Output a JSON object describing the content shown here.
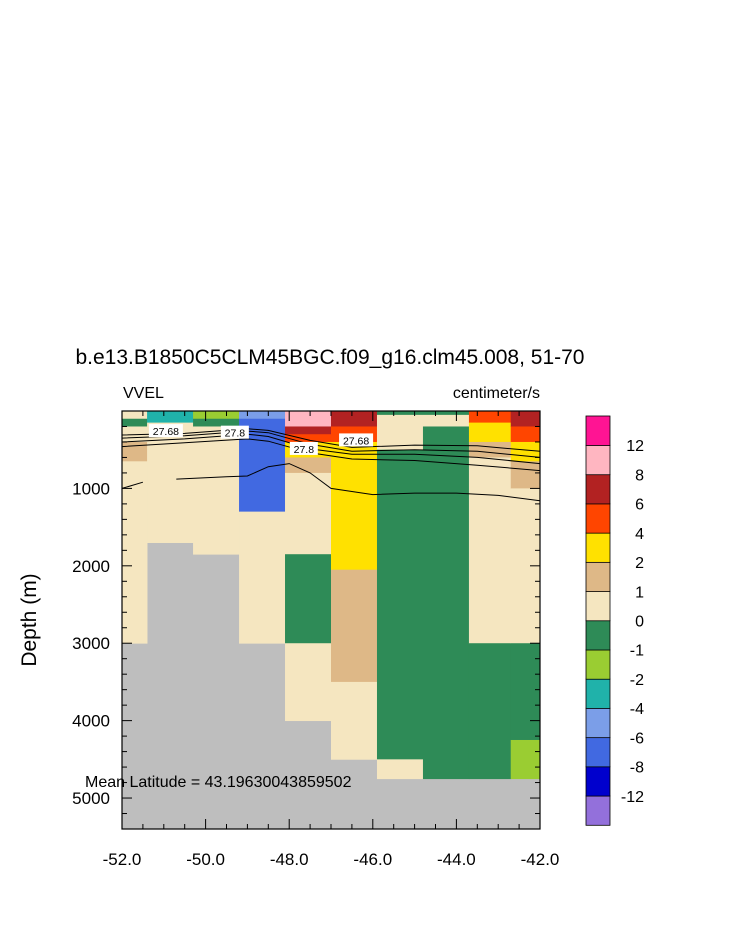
{
  "chart_data": {
    "type": "heatmap",
    "title": "b.e13.B1850C5CLM45BGC.f09_g16.clm45.008, 51-70",
    "left_label": "VVEL",
    "right_label": "centimeter/s",
    "xlabel": "",
    "ylabel": "Depth (m)",
    "annotation": "Mean Latitude = 43.19630043859502",
    "xlim": [
      -52.0,
      -42.0
    ],
    "ylim": [
      0,
      5400
    ],
    "y_reversed": true,
    "x_ticks": [
      -52,
      -50,
      -48,
      -46,
      -44,
      -42
    ],
    "x_tick_labels": [
      "-52.0",
      "-50.0",
      "-48.0",
      "-46.0",
      "-44.0",
      "-42.0"
    ],
    "y_ticks": [
      1000,
      2000,
      3000,
      4000,
      5000
    ],
    "y_tick_labels": [
      "1000",
      "2000",
      "3000",
      "4000",
      "5000"
    ],
    "missing_color": "#bebebe",
    "colorbar": {
      "colors": [
        "#9370db",
        "#0000cd",
        "#4169e1",
        "#7b9ee8",
        "#20b2aa",
        "#9acd32",
        "#2e8b57",
        "#f5e6c0",
        "#deb887",
        "#ffe100",
        "#ff4500",
        "#b22222",
        "#ffb6c1",
        "#ff1493"
      ],
      "labels": [
        "-12",
        "-8",
        "-6",
        "-4",
        "-2",
        "-1",
        "0",
        "1",
        "2",
        "4",
        "6",
        "8",
        "12"
      ]
    },
    "cells": [
      {
        "x": [
          -52.0,
          -51.4
        ],
        "y": [
          0,
          100
        ],
        "value": "0 to 1"
      },
      {
        "x": [
          -52.0,
          -51.4
        ],
        "y": [
          100,
          200
        ],
        "value": "-1 to 0"
      },
      {
        "x": [
          -52.0,
          -51.4
        ],
        "y": [
          200,
          400
        ],
        "value": "0 to 1"
      },
      {
        "x": [
          -52.0,
          -51.4
        ],
        "y": [
          400,
          650
        ],
        "value": "1 to 2"
      },
      {
        "x": [
          -52.0,
          -51.4
        ],
        "y": [
          650,
          3000
        ],
        "value": "0 to 1"
      },
      {
        "x": [
          -51.4,
          -50.3
        ],
        "y": [
          0,
          150
        ],
        "value": "-4 to -2"
      },
      {
        "x": [
          -51.4,
          -50.3
        ],
        "y": [
          150,
          300
        ],
        "value": "0 to 1"
      },
      {
        "x": [
          -51.4,
          -50.3
        ],
        "y": [
          300,
          1700
        ],
        "value": "0 to 1"
      },
      {
        "x": [
          -50.3,
          -49.2
        ],
        "y": [
          0,
          100
        ],
        "value": "-2 to -1"
      },
      {
        "x": [
          -50.3,
          -49.2
        ],
        "y": [
          100,
          200
        ],
        "value": "-1 to 0"
      },
      {
        "x": [
          -50.3,
          -49.2
        ],
        "y": [
          200,
          1850
        ],
        "value": "0 to 1"
      },
      {
        "x": [
          -49.2,
          -48.1
        ],
        "y": [
          0,
          100
        ],
        "value": "-6 to -4"
      },
      {
        "x": [
          -49.2,
          -48.1
        ],
        "y": [
          100,
          1300
        ],
        "value": "-8 to -6"
      },
      {
        "x": [
          -49.2,
          -48.1
        ],
        "y": [
          1300,
          3000
        ],
        "value": "0 to 1"
      },
      {
        "x": [
          -48.1,
          -47.0
        ],
        "y": [
          0,
          200
        ],
        "value": "8 to 12"
      },
      {
        "x": [
          -48.1,
          -47.0
        ],
        "y": [
          200,
          300
        ],
        "value": "6 to 8"
      },
      {
        "x": [
          -48.1,
          -47.0
        ],
        "y": [
          300,
          400
        ],
        "value": "4 to 6"
      },
      {
        "x": [
          -48.1,
          -47.0
        ],
        "y": [
          400,
          600
        ],
        "value": "2 to 4"
      },
      {
        "x": [
          -48.1,
          -47.0
        ],
        "y": [
          600,
          800
        ],
        "value": "1 to 2"
      },
      {
        "x": [
          -48.1,
          -47.0
        ],
        "y": [
          800,
          1850
        ],
        "value": "0 to 1"
      },
      {
        "x": [
          -48.1,
          -47.0
        ],
        "y": [
          1850,
          3000
        ],
        "value": "-1 to 0"
      },
      {
        "x": [
          -48.1,
          -47.0
        ],
        "y": [
          3000,
          4000
        ],
        "value": "0 to 1"
      },
      {
        "x": [
          -47.0,
          -45.9
        ],
        "y": [
          0,
          200
        ],
        "value": "6 to 8"
      },
      {
        "x": [
          -47.0,
          -45.9
        ],
        "y": [
          200,
          400
        ],
        "value": "4 to 6"
      },
      {
        "x": [
          -47.0,
          -45.9
        ],
        "y": [
          400,
          2050
        ],
        "value": "2 to 4"
      },
      {
        "x": [
          -47.0,
          -45.9
        ],
        "y": [
          2050,
          3500
        ],
        "value": "1 to 2"
      },
      {
        "x": [
          -47.0,
          -45.9
        ],
        "y": [
          3500,
          4500
        ],
        "value": "0 to 1"
      },
      {
        "x": [
          -45.9,
          -44.8
        ],
        "y": [
          0,
          50
        ],
        "value": "-1 to 0"
      },
      {
        "x": [
          -45.9,
          -44.8
        ],
        "y": [
          50,
          500
        ],
        "value": "0 to 1"
      },
      {
        "x": [
          -45.9,
          -44.8
        ],
        "y": [
          500,
          4500
        ],
        "value": "-1 to 0"
      },
      {
        "x": [
          -45.9,
          -44.8
        ],
        "y": [
          4500,
          4750
        ],
        "value": "0 to 1"
      },
      {
        "x": [
          -44.8,
          -43.7
        ],
        "y": [
          0,
          50
        ],
        "value": "-1 to 0"
      },
      {
        "x": [
          -44.8,
          -43.7
        ],
        "y": [
          50,
          200
        ],
        "value": "0 to 1"
      },
      {
        "x": [
          -44.8,
          -43.7
        ],
        "y": [
          200,
          4750
        ],
        "value": "-1 to 0"
      },
      {
        "x": [
          -43.7,
          -42.7
        ],
        "y": [
          0,
          150
        ],
        "value": "4 to 6"
      },
      {
        "x": [
          -43.7,
          -42.7
        ],
        "y": [
          150,
          400
        ],
        "value": "2 to 4"
      },
      {
        "x": [
          -43.7,
          -42.7
        ],
        "y": [
          400,
          600
        ],
        "value": "1 to 2"
      },
      {
        "x": [
          -43.7,
          -42.7
        ],
        "y": [
          600,
          3000
        ],
        "value": "0 to 1"
      },
      {
        "x": [
          -43.7,
          -42.7
        ],
        "y": [
          3000,
          4750
        ],
        "value": "-1 to 0"
      },
      {
        "x": [
          -42.7,
          -42.0
        ],
        "y": [
          0,
          200
        ],
        "value": "6 to 8"
      },
      {
        "x": [
          -42.7,
          -42.0
        ],
        "y": [
          200,
          400
        ],
        "value": "4 to 6"
      },
      {
        "x": [
          -42.7,
          -42.0
        ],
        "y": [
          400,
          650
        ],
        "value": "2 to 4"
      },
      {
        "x": [
          -42.7,
          -42.0
        ],
        "y": [
          650,
          1000
        ],
        "value": "1 to 2"
      },
      {
        "x": [
          -42.7,
          -42.0
        ],
        "y": [
          1000,
          3000
        ],
        "value": "0 to 1"
      },
      {
        "x": [
          -42.7,
          -42.0
        ],
        "y": [
          3000,
          4250
        ],
        "value": "-1 to 0"
      },
      {
        "x": [
          -42.7,
          -42.0
        ],
        "y": [
          4250,
          4750
        ],
        "value": "-2 to -1"
      }
    ],
    "contours": [
      {
        "level": "27.68",
        "x": [
          -52.0,
          -50.5,
          -49.0,
          -48.5,
          -47.5,
          -46.5,
          -45.0,
          -43.5,
          -42.0
        ],
        "y": [
          310,
          290,
          230,
          250,
          380,
          470,
          440,
          450,
          520
        ]
      },
      {
        "level": "",
        "x": [
          -52.0,
          -50.5,
          -49.0,
          -48.5,
          -47.5,
          -46.5,
          -45.0,
          -43.5,
          -42.0
        ],
        "y": [
          350,
          320,
          260,
          280,
          430,
          520,
          500,
          520,
          600
        ]
      },
      {
        "level": "27.8",
        "x": [
          -52.0,
          -50.5,
          -49.0,
          -48.5,
          -47.5,
          -46.5,
          -45.0,
          -43.5,
          -42.0
        ],
        "y": [
          400,
          360,
          300,
          330,
          490,
          560,
          560,
          600,
          680
        ]
      },
      {
        "level": "",
        "x": [
          -52.0,
          -50.5,
          -49.0,
          -48.5,
          -47.5,
          -46.5,
          -45.0,
          -43.5,
          -42.0
        ],
        "y": [
          460,
          410,
          360,
          390,
          540,
          620,
          640,
          700,
          770
        ]
      },
      {
        "level": "",
        "x": [
          -52.0,
          -51.5
        ],
        "y": [
          1000,
          920
        ]
      },
      {
        "level": "",
        "x": [
          -50.7,
          -49.5,
          -49.0,
          -48.5,
          -48.0,
          -47.5,
          -47.0,
          -46.0,
          -45.0,
          -44.0,
          -43.0,
          -42.0
        ],
        "y": [
          880,
          850,
          840,
          720,
          680,
          800,
          1000,
          1080,
          1060,
          1060,
          1090,
          1160
        ]
      }
    ],
    "contour_labels": [
      {
        "text": "27.68",
        "x": -50.95,
        "y": 260
      },
      {
        "text": "27.8",
        "x": -49.3,
        "y": 280
      },
      {
        "text": "27.8",
        "x": -47.65,
        "y": 490
      },
      {
        "text": "27.68",
        "x": -46.4,
        "y": 380
      }
    ]
  }
}
